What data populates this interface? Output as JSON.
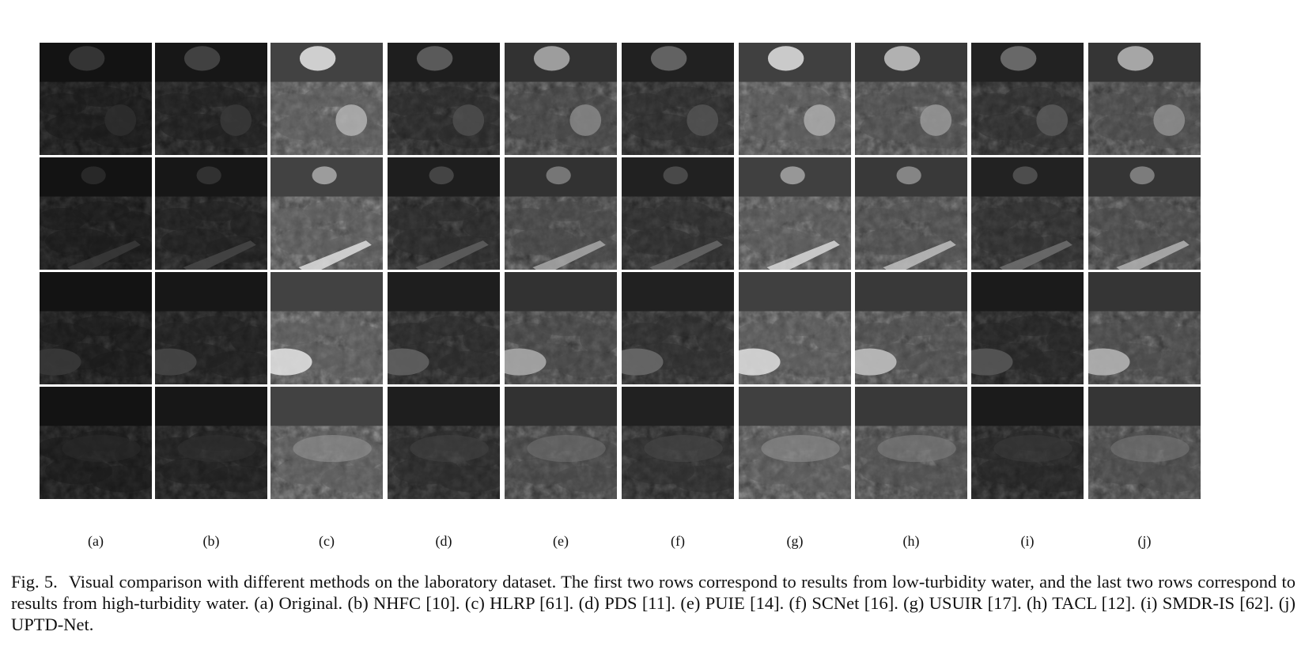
{
  "figure": {
    "rows": 4,
    "row_descriptions": [
      "low-turbidity",
      "low-turbidity",
      "high-turbidity",
      "high-turbidity"
    ],
    "columns": [
      {
        "label": "(a)",
        "method": "Original",
        "brightness": 0.1
      },
      {
        "label": "(b)",
        "method": "NHFC",
        "brightness": 0.14
      },
      {
        "label": "(c)",
        "method": "HLRP",
        "brightness": 0.62
      },
      {
        "label": "(d)",
        "method": "PDS",
        "brightness": 0.22
      },
      {
        "label": "(e)",
        "method": "PUIE",
        "brightness": 0.45
      },
      {
        "label": "(f)",
        "method": "SCNet",
        "brightness": 0.25
      },
      {
        "label": "(g)",
        "method": "USUIR",
        "brightness": 0.6
      },
      {
        "label": "(h)",
        "method": "TACL",
        "brightness": 0.52
      },
      {
        "label": "(i)",
        "method": "SMDR-IS",
        "brightness": 0.27
      },
      {
        "label": "(j)",
        "method": "UPTD-Net",
        "brightness": 0.48
      }
    ],
    "colors": {
      "background": "#ffffff",
      "gap": "#ffffff",
      "text": "#111111"
    }
  },
  "caption": {
    "prefix": "Fig. 5.",
    "text": "Visual comparison with different methods on the laboratory dataset. The first two rows correspond to results from low-turbidity water, and the last two rows correspond to results from high-turbidity water. (a) Original. (b) NHFC [10]. (c) HLRP [61]. (d) PDS [11]. (e) PUIE [14]. (f) SCNet [16]. (g) USUIR [17]. (h) TACL [12]. (i) SMDR-IS [62]. (j) UPTD-Net."
  }
}
